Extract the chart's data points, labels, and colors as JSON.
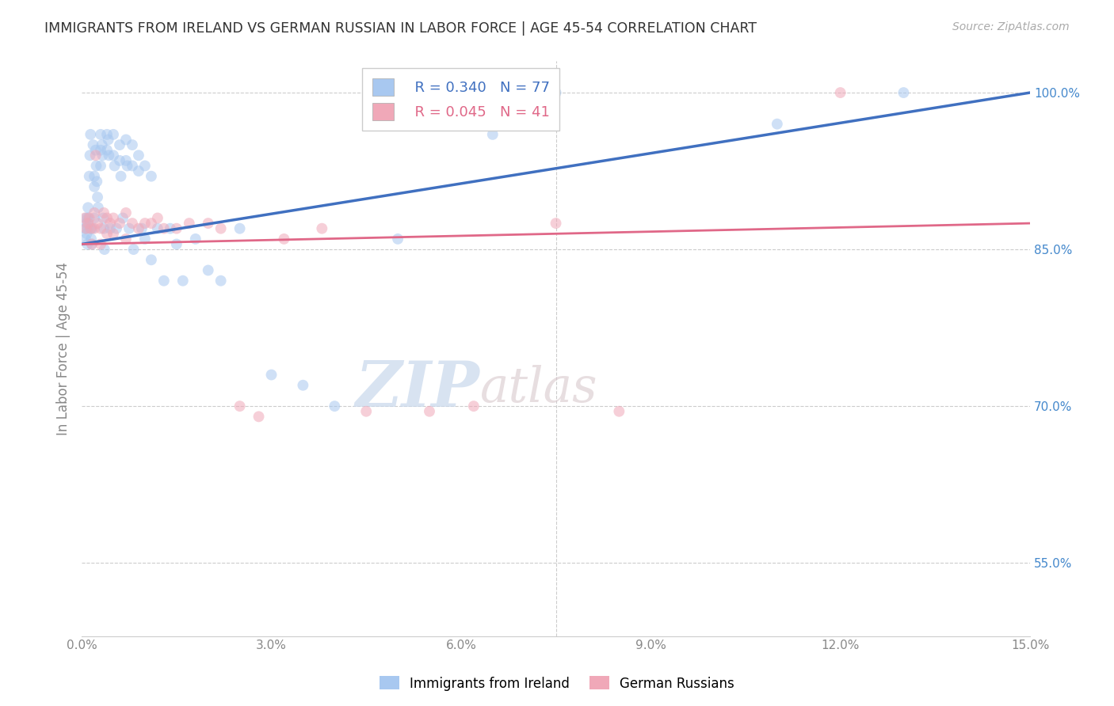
{
  "title": "IMMIGRANTS FROM IRELAND VS GERMAN RUSSIAN IN LABOR FORCE | AGE 45-54 CORRELATION CHART",
  "source": "Source: ZipAtlas.com",
  "ylabel": "In Labor Force | Age 45-54",
  "xlim": [
    0.0,
    0.15
  ],
  "ylim": [
    0.48,
    1.03
  ],
  "yticks": [
    0.55,
    0.7,
    0.85,
    1.0
  ],
  "ytick_labels": [
    "55.0%",
    "70.0%",
    "85.0%",
    "100.0%"
  ],
  "xticks": [
    0.0,
    0.03,
    0.06,
    0.09,
    0.12,
    0.15
  ],
  "xtick_labels": [
    "0.0%",
    "3.0%",
    "6.0%",
    "9.0%",
    "12.0%",
    "15.0%"
  ],
  "R_ireland": 0.34,
  "N_ireland": 77,
  "R_german": 0.045,
  "N_german": 41,
  "ireland_color": "#A8C8F0",
  "german_color": "#F0A8B8",
  "line_ireland_color": "#4070C0",
  "line_german_color": "#E06888",
  "ireland_x": [
    0.0005,
    0.0006,
    0.0007,
    0.0008,
    0.0008,
    0.0009,
    0.001,
    0.001,
    0.001,
    0.0012,
    0.0013,
    0.0014,
    0.0015,
    0.0015,
    0.0016,
    0.0017,
    0.0018,
    0.002,
    0.002,
    0.002,
    0.0022,
    0.0023,
    0.0024,
    0.0025,
    0.0026,
    0.003,
    0.003,
    0.003,
    0.0032,
    0.0033,
    0.0034,
    0.0035,
    0.0036,
    0.004,
    0.004,
    0.0042,
    0.0043,
    0.0045,
    0.005,
    0.005,
    0.0052,
    0.0055,
    0.006,
    0.006,
    0.0062,
    0.0065,
    0.007,
    0.007,
    0.0072,
    0.0075,
    0.008,
    0.008,
    0.0082,
    0.009,
    0.009,
    0.0095,
    0.01,
    0.01,
    0.011,
    0.011,
    0.012,
    0.013,
    0.014,
    0.015,
    0.016,
    0.018,
    0.02,
    0.022,
    0.025,
    0.03,
    0.035,
    0.04,
    0.05,
    0.065,
    0.075,
    0.11,
    0.13
  ],
  "ireland_y": [
    0.87,
    0.86,
    0.88,
    0.875,
    0.865,
    0.855,
    0.89,
    0.88,
    0.87,
    0.92,
    0.94,
    0.96,
    0.87,
    0.86,
    0.855,
    0.87,
    0.95,
    0.92,
    0.91,
    0.88,
    0.945,
    0.93,
    0.915,
    0.9,
    0.89,
    0.96,
    0.945,
    0.93,
    0.95,
    0.94,
    0.88,
    0.87,
    0.85,
    0.96,
    0.945,
    0.955,
    0.94,
    0.87,
    0.96,
    0.94,
    0.93,
    0.87,
    0.95,
    0.935,
    0.92,
    0.88,
    0.955,
    0.935,
    0.93,
    0.87,
    0.95,
    0.93,
    0.85,
    0.94,
    0.925,
    0.87,
    0.93,
    0.86,
    0.92,
    0.84,
    0.87,
    0.82,
    0.87,
    0.855,
    0.82,
    0.86,
    0.83,
    0.82,
    0.87,
    0.73,
    0.72,
    0.7,
    0.86,
    0.96,
    1.0,
    0.97,
    1.0
  ],
  "german_x": [
    0.0005,
    0.0007,
    0.001,
    0.0012,
    0.0014,
    0.0016,
    0.002,
    0.002,
    0.0022,
    0.0025,
    0.003,
    0.003,
    0.0035,
    0.004,
    0.004,
    0.0045,
    0.005,
    0.005,
    0.006,
    0.007,
    0.007,
    0.008,
    0.009,
    0.01,
    0.011,
    0.012,
    0.013,
    0.015,
    0.017,
    0.02,
    0.022,
    0.025,
    0.028,
    0.032,
    0.038,
    0.045,
    0.055,
    0.062,
    0.075,
    0.085,
    0.12
  ],
  "german_y": [
    0.88,
    0.87,
    0.875,
    0.88,
    0.87,
    0.855,
    0.885,
    0.87,
    0.94,
    0.875,
    0.87,
    0.855,
    0.885,
    0.88,
    0.865,
    0.875,
    0.88,
    0.865,
    0.875,
    0.885,
    0.86,
    0.875,
    0.87,
    0.875,
    0.875,
    0.88,
    0.87,
    0.87,
    0.875,
    0.875,
    0.87,
    0.7,
    0.69,
    0.86,
    0.87,
    0.695,
    0.695,
    0.7,
    0.875,
    0.695,
    1.0
  ],
  "watermark_zip": "ZIP",
  "watermark_atlas": "atlas",
  "legend_ireland_label": "Immigrants from Ireland",
  "legend_german_label": "German Russians",
  "marker_size": 100,
  "marker_alpha": 0.55,
  "background_color": "#FFFFFF",
  "grid_color": "#CCCCCC",
  "title_color": "#333333",
  "axis_label_color": "#888888",
  "right_ytick_color": "#4488CC"
}
